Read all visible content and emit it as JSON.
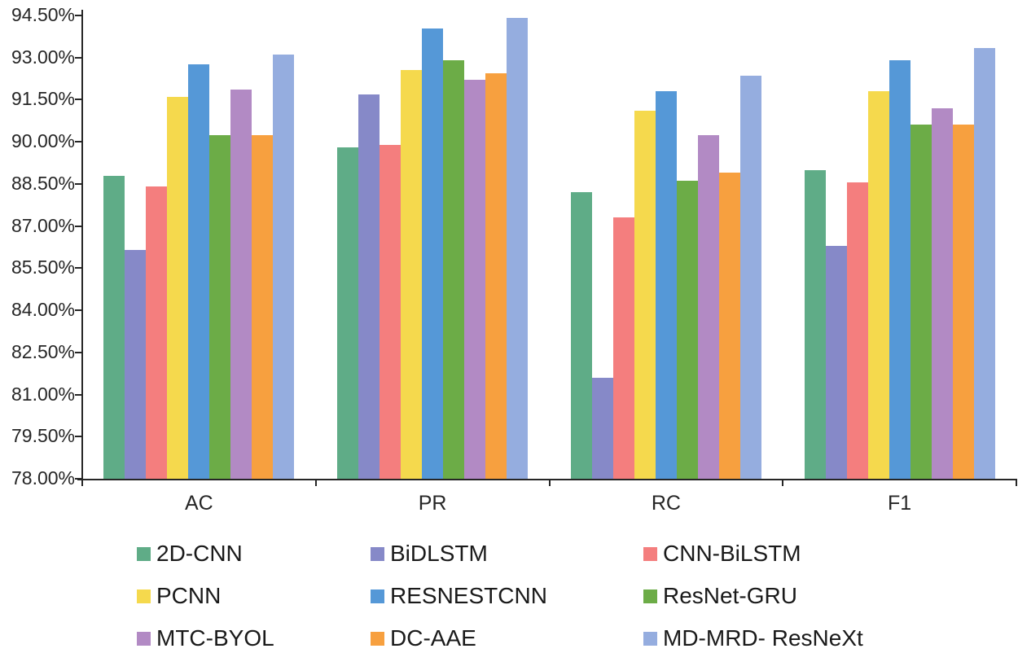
{
  "chart_data": {
    "type": "bar",
    "title": "",
    "xlabel": "",
    "ylabel": "",
    "categories": [
      "AC",
      "PR",
      "RC",
      "F1"
    ],
    "series": [
      {
        "name": "2D-CNN",
        "color": "#5FAC87",
        "values": [
          88.8,
          89.8,
          88.2,
          89.0
        ]
      },
      {
        "name": "BiDLSTM",
        "color": "#8689C8",
        "values": [
          86.15,
          91.7,
          81.6,
          86.3
        ]
      },
      {
        "name": "CNN-BiLSTM",
        "color": "#F47E7E",
        "values": [
          88.4,
          89.9,
          87.3,
          88.55
        ]
      },
      {
        "name": "PCNN",
        "color": "#F5D94D",
        "values": [
          91.6,
          92.55,
          91.1,
          91.8
        ]
      },
      {
        "name": "RESNESTCNN",
        "color": "#5598D7",
        "values": [
          92.75,
          94.05,
          91.8,
          92.9
        ]
      },
      {
        "name": "ResNet-GRU",
        "color": "#6CAC47",
        "values": [
          90.25,
          92.9,
          88.6,
          90.6
        ]
      },
      {
        "name": "MTC-BYOL",
        "color": "#B28AC4",
        "values": [
          91.85,
          92.2,
          90.25,
          91.2
        ]
      },
      {
        "name": "DC-AAE",
        "color": "#F7A03F",
        "values": [
          90.25,
          92.45,
          88.9,
          90.6
        ]
      },
      {
        "name": "MD-MRD- ResNeXt",
        "color": "#95ADDF",
        "values": [
          93.1,
          94.4,
          92.35,
          93.35
        ]
      }
    ],
    "ylim": [
      78,
      94.5
    ],
    "ytick_step": 1.5,
    "ytick_labels": [
      "78.00%",
      "79.50%",
      "81.00%",
      "82.50%",
      "84.00%",
      "85.50%",
      "87.00%",
      "88.50%",
      "90.00%",
      "91.50%",
      "93.00%",
      "94.50%"
    ],
    "grid": false,
    "legend_position": "bottom",
    "legend_rows": [
      [
        "2D-CNN",
        "BiDLSTM",
        "CNN-BiLSTM"
      ],
      [
        "PCNN",
        "RESNESTCNN",
        "ResNet-GRU"
      ],
      [
        "MTC-BYOL",
        "DC-AAE",
        "MD-MRD- ResNeXt"
      ]
    ]
  },
  "style": {
    "axis_color": "#262626",
    "tick_label_color": "#262626",
    "legend_text_color": "#1a1a1a",
    "background": "#ffffff"
  }
}
